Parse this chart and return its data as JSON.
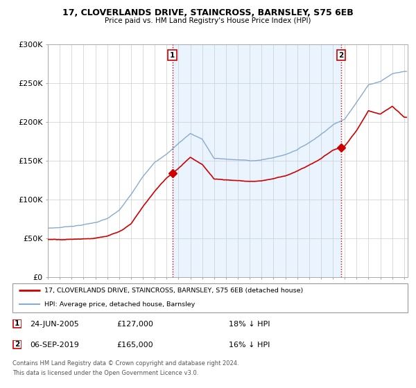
{
  "title": "17, CLOVERLANDS DRIVE, STAINCROSS, BARNSLEY, S75 6EB",
  "subtitle": "Price paid vs. HM Land Registry's House Price Index (HPI)",
  "ylabel_ticks": [
    "£0",
    "£50K",
    "£100K",
    "£150K",
    "£200K",
    "£250K",
    "£300K"
  ],
  "ylim": [
    0,
    300000
  ],
  "xlim_start": 1995.0,
  "xlim_end": 2025.3,
  "transaction1": {
    "label": "1",
    "date_str": "24-JUN-2005",
    "year": 2005.48,
    "price": 127000
  },
  "transaction2": {
    "label": "2",
    "date_str": "06-SEP-2019",
    "year": 2019.68,
    "price": 165000
  },
  "legend_line1": "17, CLOVERLANDS DRIVE, STAINCROSS, BARNSLEY, S75 6EB (detached house)",
  "legend_line2": "HPI: Average price, detached house, Barnsley",
  "footer1": "Contains HM Land Registry data © Crown copyright and database right 2024.",
  "footer2": "This data is licensed under the Open Government Licence v3.0.",
  "line_color_red": "#cc0000",
  "line_color_blue": "#88aacc",
  "shade_color": "#ddeeff",
  "dashed_color": "#cc0000",
  "bg_color": "#ffffff",
  "grid_color": "#cccccc",
  "hpi_knots_x": [
    1995,
    1996,
    1997,
    1998,
    1999,
    2000,
    2001,
    2002,
    2003,
    2004,
    2005,
    2006,
    2007,
    2008,
    2009,
    2010,
    2011,
    2012,
    2013,
    2014,
    2015,
    2016,
    2017,
    2018,
    2019,
    2020,
    2021,
    2022,
    2023,
    2024,
    2025
  ],
  "hpi_knots_y": [
    62000,
    63000,
    65000,
    67000,
    70000,
    75000,
    85000,
    105000,
    128000,
    148000,
    158000,
    172000,
    185000,
    178000,
    153000,
    152000,
    151000,
    150000,
    151000,
    154000,
    158000,
    165000,
    174000,
    185000,
    198000,
    205000,
    228000,
    250000,
    255000,
    265000,
    268000
  ],
  "prop_knots_x": [
    1995,
    1996,
    1997,
    1998,
    1999,
    2000,
    2001,
    2002,
    2003,
    2004,
    2005,
    2006,
    2007,
    2008,
    2009,
    2010,
    2011,
    2012,
    2013,
    2014,
    2015,
    2016,
    2017,
    2018,
    2019,
    2020,
    2021,
    2022,
    2023,
    2024,
    2025
  ],
  "prop_knots_y": [
    48000,
    48500,
    49000,
    50000,
    51000,
    53000,
    58000,
    68000,
    90000,
    110000,
    127000,
    140000,
    155000,
    145000,
    127000,
    126000,
    125000,
    124000,
    125000,
    128000,
    132000,
    138000,
    145000,
    154000,
    165000,
    170000,
    190000,
    215000,
    210000,
    220000,
    205000
  ]
}
